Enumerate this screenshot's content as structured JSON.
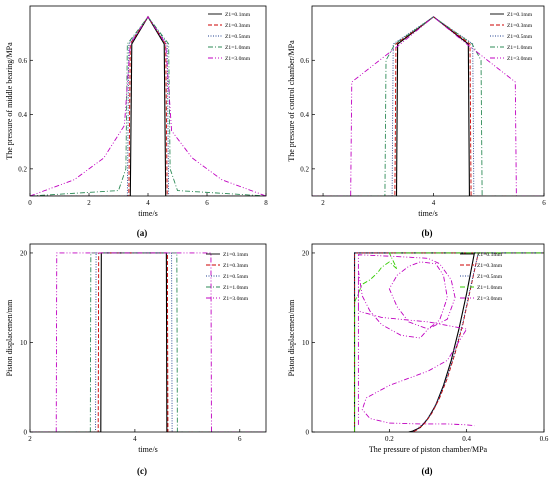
{
  "chart_data": [
    {
      "id": "a",
      "panel_label": "(a)",
      "type": "line",
      "xlabel": "time/s",
      "ylabel": "The pressure of middle bearing/MPa",
      "xlim": [
        0,
        8
      ],
      "ylim": [
        0.1,
        0.8
      ],
      "xticks": [
        "0",
        "2",
        "4",
        "6",
        "8"
      ],
      "yticks": [
        "0.2",
        "0.4",
        "0.6"
      ],
      "legend_position": "top-right",
      "series": [
        {
          "name": "Z1=0.1mm",
          "color": "#000000",
          "dash": "",
          "x": [
            0,
            3.4,
            3.45,
            4.0,
            4.55,
            4.6,
            8
          ],
          "y": [
            0.1,
            0.1,
            0.66,
            0.76,
            0.66,
            0.1,
            0.1
          ]
        },
        {
          "name": "Z1=0.3mm",
          "color": "#cc0000",
          "dash": "4,2",
          "x": [
            0,
            3.35,
            3.4,
            4.0,
            4.6,
            4.65,
            8
          ],
          "y": [
            0.1,
            0.1,
            0.66,
            0.76,
            0.66,
            0.1,
            0.1
          ]
        },
        {
          "name": "Z1=0.5mm",
          "color": "#1f3f8f",
          "dash": "1,1.5",
          "x": [
            0,
            3.3,
            3.35,
            4.0,
            4.65,
            4.7,
            8
          ],
          "y": [
            0.1,
            0.1,
            0.66,
            0.76,
            0.66,
            0.1,
            0.1
          ]
        },
        {
          "name": "Z1=1.0mm",
          "color": "#2e8b57",
          "dash": "5,2,1,2",
          "x": [
            0,
            3.0,
            3.25,
            3.3,
            4.0,
            4.7,
            4.75,
            5.0,
            8
          ],
          "y": [
            0.1,
            0.12,
            0.2,
            0.66,
            0.76,
            0.66,
            0.2,
            0.12,
            0.1
          ]
        },
        {
          "name": "Z1=3.0mm",
          "color": "#c000c0",
          "dash": "5,2,1,2,1,2",
          "x": [
            0,
            1.5,
            2.5,
            3.2,
            3.4,
            4.0,
            4.6,
            4.8,
            5.5,
            6.5,
            8
          ],
          "y": [
            0.1,
            0.16,
            0.24,
            0.36,
            0.66,
            0.76,
            0.66,
            0.34,
            0.24,
            0.16,
            0.1
          ]
        }
      ]
    },
    {
      "id": "b",
      "panel_label": "(b)",
      "type": "line",
      "xlabel": "time/s",
      "ylabel": "The pressure of control chamber/MPa",
      "xlim": [
        1.8,
        6
      ],
      "ylim": [
        0.1,
        0.8
      ],
      "xticks": [
        "2",
        "4",
        "6"
      ],
      "yticks": [
        "0.2",
        "0.4",
        "0.6"
      ],
      "legend_position": "top-right",
      "series": [
        {
          "name": "Z1=0.1mm",
          "color": "#000000",
          "dash": "",
          "x": [
            1.8,
            3.33,
            3.35,
            4.0,
            4.63,
            4.65,
            6
          ],
          "y": [
            0.1,
            0.1,
            0.66,
            0.76,
            0.66,
            0.1,
            0.1
          ]
        },
        {
          "name": "Z1=0.3mm",
          "color": "#cc0000",
          "dash": "4,2",
          "x": [
            1.8,
            3.3,
            3.32,
            4.0,
            4.66,
            4.68,
            6
          ],
          "y": [
            0.1,
            0.1,
            0.66,
            0.76,
            0.66,
            0.1,
            0.1
          ]
        },
        {
          "name": "Z1=0.5mm",
          "color": "#1f3f8f",
          "dash": "1,1.5",
          "x": [
            1.8,
            3.25,
            3.27,
            4.0,
            4.71,
            4.73,
            6
          ],
          "y": [
            0.1,
            0.1,
            0.66,
            0.76,
            0.66,
            0.1,
            0.1
          ]
        },
        {
          "name": "Z1=1.0mm",
          "color": "#2e8b57",
          "dash": "5,2,1,2",
          "x": [
            1.8,
            3.12,
            3.14,
            3.3,
            4.0,
            4.7,
            4.86,
            4.88,
            6
          ],
          "y": [
            0.1,
            0.1,
            0.6,
            0.66,
            0.76,
            0.66,
            0.6,
            0.1,
            0.1
          ]
        },
        {
          "name": "Z1=3.0mm",
          "color": "#c000c0",
          "dash": "5,2,1,2,1,2",
          "x": [
            1.8,
            2.5,
            2.52,
            3.4,
            4.0,
            4.6,
            5.48,
            5.5,
            6
          ],
          "y": [
            0.1,
            0.1,
            0.52,
            0.66,
            0.76,
            0.66,
            0.52,
            0.1,
            0.1
          ]
        }
      ]
    },
    {
      "id": "c",
      "panel_label": "(c)",
      "type": "line",
      "xlabel": "time/s",
      "ylabel": "Piston displacemen/mm",
      "xlim": [
        2,
        6.5
      ],
      "ylim": [
        0,
        21
      ],
      "xticks": [
        "2",
        "4",
        "6"
      ],
      "yticks": [
        "0",
        "10",
        "20"
      ],
      "legend_position": "top-right",
      "series": [
        {
          "name": "Z1=0.1mm",
          "color": "#000000",
          "dash": "",
          "x": [
            2,
            3.35,
            3.36,
            4.6,
            4.61,
            6.5
          ],
          "y": [
            0,
            0,
            20,
            20,
            0,
            0
          ]
        },
        {
          "name": "Z1=0.3mm",
          "color": "#cc0000",
          "dash": "4,2",
          "x": [
            2,
            3.3,
            3.31,
            4.62,
            4.63,
            6.5
          ],
          "y": [
            0,
            0,
            20,
            20,
            0,
            0
          ]
        },
        {
          "name": "Z1=0.5mm",
          "color": "#1f3f8f",
          "dash": "1,1.5",
          "x": [
            2,
            3.25,
            3.26,
            4.7,
            4.71,
            6.5
          ],
          "y": [
            0,
            0,
            20,
            20,
            0,
            0
          ]
        },
        {
          "name": "Z1=1.0mm",
          "color": "#2e8b57",
          "dash": "5,2,1,2",
          "x": [
            2,
            3.15,
            3.16,
            4.8,
            4.81,
            6.5
          ],
          "y": [
            0,
            0,
            20,
            20,
            0,
            0
          ]
        },
        {
          "name": "Z1=3.0mm",
          "color": "#c000c0",
          "dash": "5,2,1,2,1,2",
          "x": [
            2,
            2.5,
            2.51,
            5.45,
            5.46,
            6.5
          ],
          "y": [
            0,
            0,
            20,
            20,
            0,
            0
          ]
        }
      ]
    },
    {
      "id": "d",
      "panel_label": "(d)",
      "type": "line",
      "xlabel": "The pressure of piston chamber/MPa",
      "ylabel": "Piston displacemen/mm",
      "xlim": [
        0,
        0.6
      ],
      "ylim": [
        0,
        21
      ],
      "xticks": [
        "0.2",
        "0.4",
        "0.6"
      ],
      "yticks": [
        "0",
        "10",
        "20"
      ],
      "legend_position": "right",
      "series": [
        {
          "name": "Z1=0.1mm",
          "color": "#000000",
          "dash": "",
          "x": [
            0.11,
            0.11,
            0.42,
            0.6,
            0.6,
            0.42,
            0.4,
            0.38,
            0.36,
            0.34,
            0.32,
            0.3,
            0.28,
            0.26,
            0.25
          ],
          "y": [
            0,
            20,
            20,
            20,
            20,
            20,
            15.5,
            11.5,
            8,
            5.2,
            3,
            1.5,
            0.5,
            0.1,
            0
          ]
        },
        {
          "name": "Z1=0.3mm",
          "color": "#cc0000",
          "dash": "4,2",
          "x": [
            0.11,
            0.11,
            0.6,
            0.43,
            0.41,
            0.39,
            0.37,
            0.35,
            0.33,
            0.31,
            0.29,
            0.27,
            0.26
          ],
          "y": [
            0,
            20,
            20,
            20,
            16,
            12,
            8.8,
            6,
            3.8,
            2.1,
            0.9,
            0.2,
            0
          ]
        },
        {
          "name": "Z1=0.5mm",
          "color": "#1f3f8f",
          "dash": "1,1.5",
          "x": [
            0.11,
            0.11,
            0.6,
            0.43,
            0.41,
            0.39,
            0.37,
            0.35,
            0.33,
            0.31,
            0.29,
            0.27,
            0.26
          ],
          "y": [
            0,
            20,
            20,
            20,
            16.2,
            12.2,
            9,
            6.2,
            4,
            2.2,
            1,
            0.3,
            0
          ]
        },
        {
          "name": "Z1=1.0mm",
          "color": "#33cc00",
          "dash": "5,2,1,2",
          "x": [
            0.11,
            0.11,
            0.13,
            0.15,
            0.17,
            0.18,
            0.2,
            0.22,
            0.2,
            0.6
          ],
          "y": [
            0,
            14.5,
            16.5,
            17,
            17.8,
            18.4,
            19,
            18.2,
            20,
            20
          ]
        },
        {
          "name": "Z1=3.0mm",
          "color": "#c000c0",
          "dash": "5,2,1,2,1,2",
          "x": [
            0.12,
            0.12,
            0.22,
            0.3,
            0.33,
            0.36,
            0.37,
            0.35,
            0.3,
            0.25,
            0.22,
            0.2,
            0.22,
            0.25,
            0.28,
            0.32,
            0.34,
            0.35,
            0.33,
            0.3,
            0.28,
            0.23,
            0.18,
            0.15,
            0.13,
            0.12,
            0.12,
            0.18,
            0.25,
            0.3,
            0.35,
            0.4,
            0.35,
            0.3,
            0.2,
            0.14,
            0.13,
            0.15,
            0.2,
            0.28,
            0.35,
            0.4,
            0.42
          ],
          "y": [
            0.8,
            19.8,
            19.6,
            19.4,
            18.8,
            17,
            15,
            12.6,
            11.5,
            12.3,
            14,
            16,
            17.5,
            18.5,
            19,
            18.8,
            17.5,
            15,
            12.5,
            11.5,
            10.5,
            10.8,
            12,
            13.5,
            15.2,
            18,
            13.5,
            12.8,
            12.5,
            12.3,
            11.9,
            11.5,
            8,
            6.8,
            5.2,
            3.8,
            2.5,
            1.5,
            1,
            0.9,
            0.9,
            0.8,
            0.7
          ]
        }
      ]
    }
  ]
}
